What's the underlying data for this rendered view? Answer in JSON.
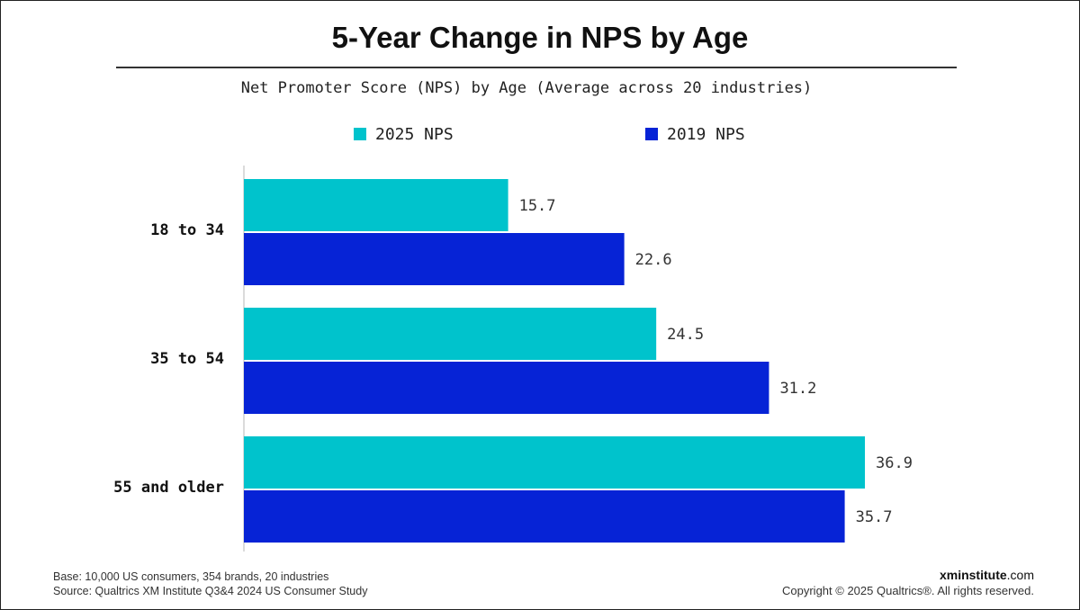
{
  "chart_data": {
    "type": "bar",
    "orientation": "horizontal",
    "title": "5-Year Change in NPS by Age",
    "subtitle": "Net Promoter Score (NPS) by Age (Average across 20 industries)",
    "categories": [
      "18 to 34",
      "35 to 54",
      "55 and older"
    ],
    "series": [
      {
        "name": "2025 NPS",
        "color": "#00C3CC",
        "values": [
          15.7,
          24.5,
          36.9
        ],
        "labels": [
          "15.7",
          "24.5",
          "36.9"
        ]
      },
      {
        "name": "2019 NPS",
        "color": "#0623D6",
        "values": [
          22.6,
          31.2,
          35.7
        ],
        "labels": [
          "22.6",
          "31.2",
          "35.7"
        ]
      }
    ],
    "xlim": [
      0,
      40
    ],
    "grid": false,
    "legend": "top"
  },
  "footer": {
    "base": "Base: 10,000 US consumers, 354 brands, 20 industries",
    "source": "Source: Qualtrics XM Institute Q3&4 2024 US Consumer Study",
    "brand_bold": "xminstitute",
    "brand_suffix": ".com",
    "copyright": "Copyright © 2025 Qualtrics®. All rights reserved."
  }
}
